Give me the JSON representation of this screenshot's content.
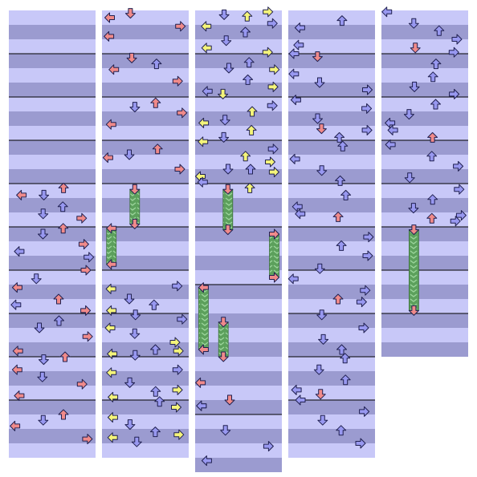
{
  "title": "",
  "colors": {
    "background": "#ffffff",
    "stripe_light": "#c8c8f8",
    "stripe_dark": "#9b9bd0",
    "measure_line": "#000000",
    "note_red": "#f08a8a",
    "note_blue": "#9898f0",
    "note_yellow": "#f4f47a",
    "hold_body": "#5ca05c",
    "outline": "#202050"
  },
  "icons": {
    "left": "arrow-left-icon",
    "down": "arrow-down-icon",
    "up": "arrow-up-icon",
    "right": "arrow-right-icon"
  },
  "columns": [
    {
      "id": "col-1",
      "rows": 31,
      "measures": [
        3,
        6,
        9,
        12,
        15,
        18,
        21,
        24,
        27
      ],
      "notes": [
        {
          "r": 12.3,
          "lane": "up",
          "c": "red"
        },
        {
          "r": 12.8,
          "lane": "left",
          "c": "red"
        },
        {
          "r": 12.8,
          "lane": "down",
          "c": "blue"
        },
        {
          "r": 13.6,
          "lane": "up",
          "c": "blue"
        },
        {
          "r": 14.1,
          "lane": "down",
          "c": "blue"
        },
        {
          "r": 14.4,
          "lane": "right",
          "c": "red"
        },
        {
          "r": 15.1,
          "lane": "up",
          "c": "red"
        },
        {
          "r": 15.5,
          "lane": "down",
          "c": "blue"
        },
        {
          "r": 16.2,
          "lane": "right",
          "c": "red"
        },
        {
          "r": 16.7,
          "lane": "left",
          "c": "blue"
        },
        {
          "r": 17.1,
          "lane": "right",
          "c": "blue"
        },
        {
          "r": 18.0,
          "lane": "right",
          "c": "red"
        },
        {
          "r": 18.6,
          "lane": "down",
          "c": "blue"
        },
        {
          "r": 19.2,
          "lane": "left",
          "c": "red"
        },
        {
          "r": 20.0,
          "lane": "up",
          "c": "red"
        },
        {
          "r": 20.4,
          "lane": "left",
          "c": "blue"
        },
        {
          "r": 20.8,
          "lane": "right",
          "c": "red"
        },
        {
          "r": 21.5,
          "lane": "up",
          "c": "blue"
        },
        {
          "r": 22.0,
          "lane": "down",
          "c": "blue"
        },
        {
          "r": 22.6,
          "lane": "right",
          "c": "red"
        },
        {
          "r": 23.6,
          "lane": "left",
          "c": "red"
        },
        {
          "r": 24.0,
          "lane": "up",
          "c": "red"
        },
        {
          "r": 24.2,
          "lane": "down",
          "c": "blue"
        },
        {
          "r": 24.9,
          "lane": "left",
          "c": "red"
        },
        {
          "r": 25.4,
          "lane": "down",
          "c": "blue"
        },
        {
          "r": 25.9,
          "lane": "right",
          "c": "red"
        },
        {
          "r": 26.7,
          "lane": "left",
          "c": "red"
        },
        {
          "r": 28.0,
          "lane": "up",
          "c": "red"
        },
        {
          "r": 28.4,
          "lane": "down",
          "c": "blue"
        },
        {
          "r": 28.8,
          "lane": "left",
          "c": "red"
        },
        {
          "r": 29.7,
          "lane": "right",
          "c": "red"
        }
      ],
      "holds": []
    },
    {
      "id": "col-2",
      "rows": 31,
      "measures": [
        3,
        6,
        9,
        12,
        15,
        18,
        21,
        24,
        27
      ],
      "notes": [
        {
          "r": 0.2,
          "lane": "down",
          "c": "red"
        },
        {
          "r": 0.5,
          "lane": "left",
          "c": "red"
        },
        {
          "r": 1.1,
          "lane": "right",
          "c": "red"
        },
        {
          "r": 1.8,
          "lane": "left",
          "c": "red"
        },
        {
          "r": 3.3,
          "lane": "down",
          "c": "red"
        },
        {
          "r": 3.7,
          "lane": "up",
          "c": "blue"
        },
        {
          "r": 4.1,
          "lane": "left",
          "c": "red"
        },
        {
          "r": 4.9,
          "lane": "right",
          "c": "red"
        },
        {
          "r": 6.4,
          "lane": "up",
          "c": "red"
        },
        {
          "r": 6.7,
          "lane": "down",
          "c": "blue"
        },
        {
          "r": 7.1,
          "lane": "right",
          "c": "red"
        },
        {
          "r": 7.9,
          "lane": "left",
          "c": "red"
        },
        {
          "r": 9.6,
          "lane": "up",
          "c": "red"
        },
        {
          "r": 10.0,
          "lane": "down",
          "c": "blue"
        },
        {
          "r": 10.2,
          "lane": "left",
          "c": "red"
        },
        {
          "r": 11.0,
          "lane": "right",
          "c": "red"
        },
        {
          "r": 19.1,
          "lane": "right",
          "c": "blue"
        },
        {
          "r": 19.3,
          "lane": "left",
          "c": "yellow"
        },
        {
          "r": 20.0,
          "lane": "down",
          "c": "blue"
        },
        {
          "r": 20.4,
          "lane": "up",
          "c": "blue"
        },
        {
          "r": 20.8,
          "lane": "left",
          "c": "yellow"
        },
        {
          "r": 21.1,
          "lane": "down",
          "c": "blue"
        },
        {
          "r": 21.4,
          "lane": "right",
          "c": "blue"
        },
        {
          "r": 22.0,
          "lane": "left",
          "c": "yellow"
        },
        {
          "r": 22.4,
          "lane": "down",
          "c": "blue"
        },
        {
          "r": 23.0,
          "lane": "right",
          "c": "yellow"
        },
        {
          "r": 23.5,
          "lane": "up",
          "c": "blue"
        },
        {
          "r": 23.6,
          "lane": "right",
          "c": "yellow"
        },
        {
          "r": 23.8,
          "lane": "left",
          "c": "yellow"
        },
        {
          "r": 23.9,
          "lane": "down",
          "c": "blue"
        },
        {
          "r": 24.9,
          "lane": "right",
          "c": "blue"
        },
        {
          "r": 25.1,
          "lane": "left",
          "c": "yellow"
        },
        {
          "r": 25.8,
          "lane": "down",
          "c": "blue"
        },
        {
          "r": 26.3,
          "lane": "right",
          "c": "yellow"
        },
        {
          "r": 26.4,
          "lane": "up",
          "c": "blue"
        },
        {
          "r": 26.8,
          "lane": "left",
          "c": "yellow"
        },
        {
          "r": 27.1,
          "lane": "up",
          "c": "blue"
        },
        {
          "r": 27.5,
          "lane": "right",
          "c": "yellow"
        },
        {
          "r": 28.2,
          "lane": "left",
          "c": "yellow"
        },
        {
          "r": 28.7,
          "lane": "down",
          "c": "blue"
        },
        {
          "r": 29.2,
          "lane": "up",
          "c": "blue"
        },
        {
          "r": 29.4,
          "lane": "right",
          "c": "yellow"
        },
        {
          "r": 29.6,
          "lane": "left",
          "c": "yellow"
        },
        {
          "r": 29.9,
          "lane": "down",
          "c": "blue"
        }
      ],
      "holds": [
        {
          "r": 12.4,
          "end": 14.8,
          "lane": "down"
        },
        {
          "r": 15.1,
          "end": 17.6,
          "lane": "left"
        }
      ]
    },
    {
      "id": "col-3",
      "rows": 32,
      "measures": [
        3,
        6,
        9,
        12,
        15,
        19,
        28
      ],
      "notes": [
        {
          "r": 0.1,
          "lane": "right",
          "c": "yellow"
        },
        {
          "r": 0.3,
          "lane": "down",
          "c": "blue"
        },
        {
          "r": 0.4,
          "lane": "up",
          "c": "yellow"
        },
        {
          "r": 0.9,
          "lane": "right",
          "c": "blue"
        },
        {
          "r": 1.1,
          "lane": "left",
          "c": "yellow"
        },
        {
          "r": 1.5,
          "lane": "up",
          "c": "blue"
        },
        {
          "r": 2.1,
          "lane": "down",
          "c": "blue"
        },
        {
          "r": 2.6,
          "lane": "left",
          "c": "yellow"
        },
        {
          "r": 2.9,
          "lane": "right",
          "c": "yellow"
        },
        {
          "r": 3.6,
          "lane": "up",
          "c": "blue"
        },
        {
          "r": 4.0,
          "lane": "down",
          "c": "blue"
        },
        {
          "r": 4.1,
          "lane": "right",
          "c": "yellow"
        },
        {
          "r": 4.8,
          "lane": "up",
          "c": "blue"
        },
        {
          "r": 5.3,
          "lane": "right",
          "c": "yellow"
        },
        {
          "r": 5.6,
          "lane": "left",
          "c": "blue"
        },
        {
          "r": 5.8,
          "lane": "down",
          "c": "yellow"
        },
        {
          "r": 6.6,
          "lane": "right",
          "c": "blue"
        },
        {
          "r": 7.0,
          "lane": "up",
          "c": "yellow"
        },
        {
          "r": 7.6,
          "lane": "down",
          "c": "blue"
        },
        {
          "r": 7.8,
          "lane": "left",
          "c": "yellow"
        },
        {
          "r": 8.3,
          "lane": "up",
          "c": "yellow"
        },
        {
          "r": 8.8,
          "lane": "down",
          "c": "blue"
        },
        {
          "r": 9.1,
          "lane": "left",
          "c": "yellow"
        },
        {
          "r": 9.6,
          "lane": "right",
          "c": "blue"
        },
        {
          "r": 10.1,
          "lane": "up",
          "c": "yellow"
        },
        {
          "r": 10.5,
          "lane": "right",
          "c": "yellow"
        },
        {
          "r": 11.0,
          "lane": "down",
          "c": "blue"
        },
        {
          "r": 11.0,
          "lane": "up",
          "c": "blue"
        },
        {
          "r": 11.2,
          "lane": "right",
          "c": "yellow"
        },
        {
          "r": 11.5,
          "lane": "left",
          "c": "yellow"
        },
        {
          "r": 11.9,
          "lane": "left",
          "c": "blue"
        },
        {
          "r": 12.3,
          "lane": "up",
          "c": "yellow"
        },
        {
          "r": 27.4,
          "lane": "left",
          "c": "blue"
        },
        {
          "r": 29.1,
          "lane": "down",
          "c": "blue"
        },
        {
          "r": 30.2,
          "lane": "right",
          "c": "blue"
        },
        {
          "r": 31.2,
          "lane": "left",
          "c": "blue"
        }
      ],
      "holds": [
        {
          "r": 12.4,
          "end": 15.2,
          "lane": "down"
        },
        {
          "r": 15.5,
          "end": 18.5,
          "lane": "right"
        },
        {
          "r": 19.2,
          "end": 23.5,
          "lane": "left"
        },
        {
          "r": 21.6,
          "end": 24.0,
          "lane": "down"
        },
        {
          "r": 25.8,
          "lane": "left",
          "c": "red"
        },
        {
          "r": 27.0,
          "lane": "down",
          "c": "red"
        },
        {
          "r": 27.4,
          "lane": "left",
          "c": "yellow"
        }
      ]
    },
    {
      "id": "col-4",
      "rows": 31,
      "measures": [
        3,
        6,
        9,
        12,
        15,
        18,
        21,
        24,
        27
      ],
      "notes": [
        {
          "r": 0.7,
          "lane": "up",
          "c": "blue"
        },
        {
          "r": 1.2,
          "lane": "left",
          "c": "blue"
        },
        {
          "r": 2.4,
          "lane": "left",
          "c": "blue"
        },
        {
          "r": 3.0,
          "lane": "left",
          "c": "blue"
        },
        {
          "r": 3.2,
          "lane": "down",
          "c": "red"
        },
        {
          "r": 4.4,
          "lane": "left",
          "c": "blue"
        },
        {
          "r": 5.0,
          "lane": "down",
          "c": "blue"
        },
        {
          "r": 5.5,
          "lane": "right",
          "c": "blue"
        },
        {
          "r": 6.2,
          "lane": "left",
          "c": "blue"
        },
        {
          "r": 6.8,
          "lane": "right",
          "c": "blue"
        },
        {
          "r": 7.5,
          "lane": "down",
          "c": "blue"
        },
        {
          "r": 8.2,
          "lane": "down",
          "c": "red"
        },
        {
          "r": 8.3,
          "lane": "right",
          "c": "blue"
        },
        {
          "r": 8.8,
          "lane": "up",
          "c": "blue"
        },
        {
          "r": 9.4,
          "lane": "up",
          "c": "blue"
        },
        {
          "r": 10.3,
          "lane": "left",
          "c": "blue"
        },
        {
          "r": 11.1,
          "lane": "down",
          "c": "blue"
        },
        {
          "r": 11.8,
          "lane": "up",
          "c": "blue"
        },
        {
          "r": 12.8,
          "lane": "up",
          "c": "blue"
        },
        {
          "r": 13.6,
          "lane": "left",
          "c": "blue"
        },
        {
          "r": 14.1,
          "lane": "left",
          "c": "blue"
        },
        {
          "r": 14.3,
          "lane": "up",
          "c": "red"
        },
        {
          "r": 15.7,
          "lane": "right",
          "c": "blue"
        },
        {
          "r": 16.3,
          "lane": "up",
          "c": "blue"
        },
        {
          "r": 17.0,
          "lane": "right",
          "c": "blue"
        },
        {
          "r": 17.9,
          "lane": "down",
          "c": "blue"
        },
        {
          "r": 18.6,
          "lane": "left",
          "c": "blue"
        },
        {
          "r": 19.4,
          "lane": "right",
          "c": "blue"
        },
        {
          "r": 20.0,
          "lane": "up",
          "c": "red"
        },
        {
          "r": 20.2,
          "lane": "right",
          "c": "blue"
        },
        {
          "r": 21.1,
          "lane": "down",
          "c": "blue"
        },
        {
          "r": 22.0,
          "lane": "right",
          "c": "blue"
        },
        {
          "r": 22.8,
          "lane": "down",
          "c": "blue"
        },
        {
          "r": 23.5,
          "lane": "up",
          "c": "blue"
        },
        {
          "r": 24.1,
          "lane": "up",
          "c": "blue"
        },
        {
          "r": 24.9,
          "lane": "down",
          "c": "blue"
        },
        {
          "r": 25.6,
          "lane": "up",
          "c": "blue"
        },
        {
          "r": 26.3,
          "lane": "left",
          "c": "blue"
        },
        {
          "r": 26.6,
          "lane": "down",
          "c": "red"
        },
        {
          "r": 27.0,
          "lane": "left",
          "c": "blue"
        },
        {
          "r": 27.8,
          "lane": "right",
          "c": "blue"
        },
        {
          "r": 28.4,
          "lane": "down",
          "c": "blue"
        },
        {
          "r": 29.1,
          "lane": "up",
          "c": "blue"
        },
        {
          "r": 30.0,
          "lane": "right",
          "c": "blue"
        }
      ],
      "holds": []
    },
    {
      "id": "col-5",
      "rows": 24,
      "measures": [
        3,
        6,
        9,
        12,
        15,
        18,
        21
      ],
      "notes": [
        {
          "r": 0.1,
          "lane": "left",
          "c": "blue"
        },
        {
          "r": 0.9,
          "lane": "down",
          "c": "blue"
        },
        {
          "r": 1.4,
          "lane": "up",
          "c": "blue"
        },
        {
          "r": 2.0,
          "lane": "right",
          "c": "blue"
        },
        {
          "r": 2.6,
          "lane": "down",
          "c": "red"
        },
        {
          "r": 2.9,
          "lane": "right",
          "c": "blue"
        },
        {
          "r": 3.7,
          "lane": "up",
          "c": "blue"
        },
        {
          "r": 4.6,
          "lane": "up",
          "c": "blue"
        },
        {
          "r": 5.3,
          "lane": "down",
          "c": "blue"
        },
        {
          "r": 5.8,
          "lane": "right",
          "c": "blue"
        },
        {
          "r": 6.5,
          "lane": "up",
          "c": "blue"
        },
        {
          "r": 7.2,
          "lane": "down",
          "c": "blue"
        },
        {
          "r": 7.8,
          "lane": "left",
          "c": "blue"
        },
        {
          "r": 8.3,
          "lane": "left",
          "c": "blue"
        },
        {
          "r": 8.8,
          "lane": "up",
          "c": "red"
        },
        {
          "r": 9.3,
          "lane": "left",
          "c": "blue"
        },
        {
          "r": 10.1,
          "lane": "up",
          "c": "blue"
        },
        {
          "r": 10.8,
          "lane": "right",
          "c": "blue"
        },
        {
          "r": 11.6,
          "lane": "down",
          "c": "blue"
        },
        {
          "r": 12.4,
          "lane": "right",
          "c": "blue"
        },
        {
          "r": 13.1,
          "lane": "up",
          "c": "blue"
        },
        {
          "r": 13.7,
          "lane": "down",
          "c": "blue"
        },
        {
          "r": 14.2,
          "lane": "right",
          "c": "blue"
        },
        {
          "r": 14.4,
          "lane": "up",
          "c": "red"
        },
        {
          "r": 14.6,
          "lane": "right",
          "c": "blue"
        }
      ],
      "holds": [
        {
          "r": 15.2,
          "end": 20.8,
          "lane": "down"
        }
      ]
    }
  ]
}
